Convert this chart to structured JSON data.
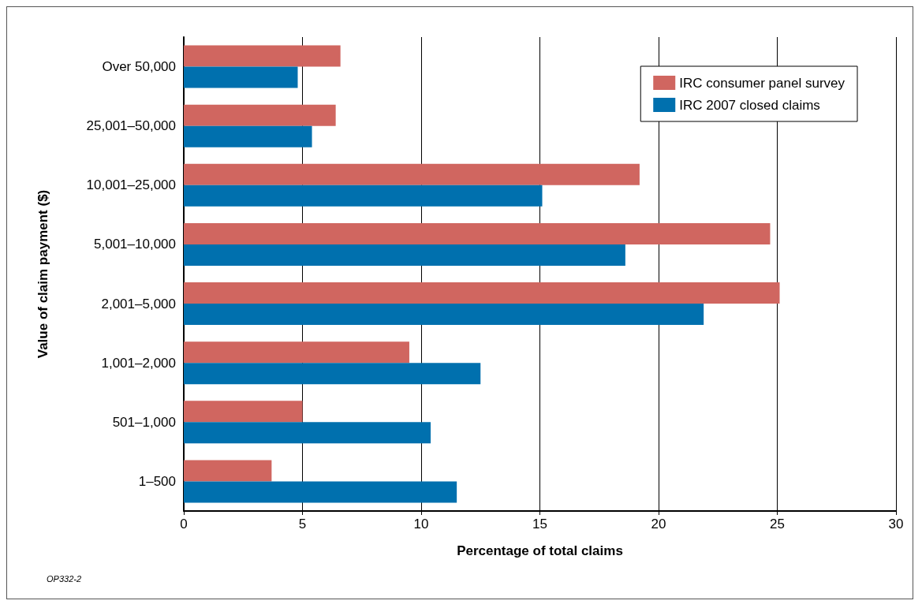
{
  "chart_data": {
    "type": "bar",
    "orientation": "horizontal",
    "xlabel": "Percentage of total claims",
    "ylabel": "Value of claim payment ($)",
    "categories": [
      "Over 50,000",
      "25,001–50,000",
      "10,001–25,000",
      "5,001–10,000",
      "2,001–5,000",
      "1,001–2,000",
      "501–1,000",
      "1–500"
    ],
    "series": [
      {
        "name": "IRC consumer panel survey",
        "color": "#d06660",
        "values": [
          6.6,
          6.4,
          19.2,
          24.7,
          25.1,
          9.5,
          5.0,
          3.7
        ]
      },
      {
        "name": "IRC 2007 closed claims",
        "color": "#0070ae",
        "values": [
          4.8,
          5.4,
          15.1,
          18.6,
          21.9,
          12.5,
          10.4,
          11.5
        ]
      }
    ],
    "xlim": [
      0,
      30
    ],
    "xticks": [
      0,
      5,
      10,
      15,
      20,
      25,
      30
    ],
    "grid": "x",
    "legend": "top right",
    "annotations": [
      "OP332-2"
    ]
  }
}
